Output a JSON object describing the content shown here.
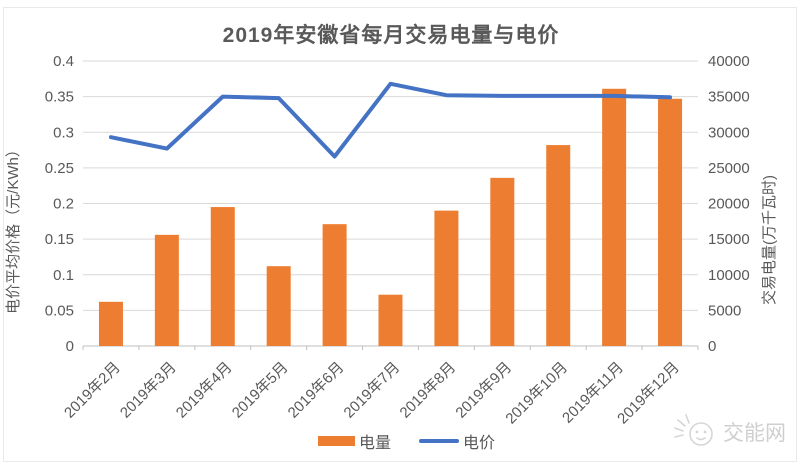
{
  "title": "2019年安徽省每月交易电量与电价",
  "watermark": "交能网",
  "legend": {
    "volume_label": "电量",
    "price_label": "电价"
  },
  "colors": {
    "bar": "#ED7D31",
    "line": "#4472C4",
    "grid": "#D9D9D9",
    "axis": "#BFBFBF",
    "text": "#595959",
    "watermark_text": "#CFCFCF"
  },
  "chart_data": {
    "type": "bar",
    "subtype": "combo-bar-line",
    "title": "2019年安徽省每月交易电量与电价",
    "categories": [
      "2019年2月",
      "2019年3月",
      "2019年4月",
      "2019年5月",
      "2019年6月",
      "2019年7月",
      "2019年8月",
      "2019年9月",
      "2019年10月",
      "2019年11月",
      "2019年12月"
    ],
    "series": [
      {
        "name": "电量",
        "type": "bar",
        "y_axis": "right",
        "color": "#ED7D31",
        "values": [
          6200,
          15600,
          19500,
          11200,
          17100,
          7200,
          19000,
          23600,
          28200,
          36100,
          34700
        ]
      },
      {
        "name": "电价",
        "type": "line",
        "y_axis": "left",
        "color": "#4472C4",
        "values": [
          0.293,
          0.277,
          0.35,
          0.348,
          0.266,
          0.368,
          0.352,
          0.351,
          0.351,
          0.351,
          0.349
        ]
      }
    ],
    "left_axis": {
      "label": "电价平均价格（元/KWh）",
      "min": 0,
      "max": 0.4,
      "step": 0.05,
      "ticks": [
        0,
        0.05,
        0.1,
        0.15,
        0.2,
        0.25,
        0.3,
        0.35,
        0.4
      ]
    },
    "right_axis": {
      "label": "交易电量(万千瓦时)",
      "min": 0,
      "max": 40000,
      "step": 5000,
      "ticks": [
        0,
        5000,
        10000,
        15000,
        20000,
        25000,
        30000,
        35000,
        40000
      ]
    },
    "grid": true,
    "legend_position": "bottom"
  }
}
